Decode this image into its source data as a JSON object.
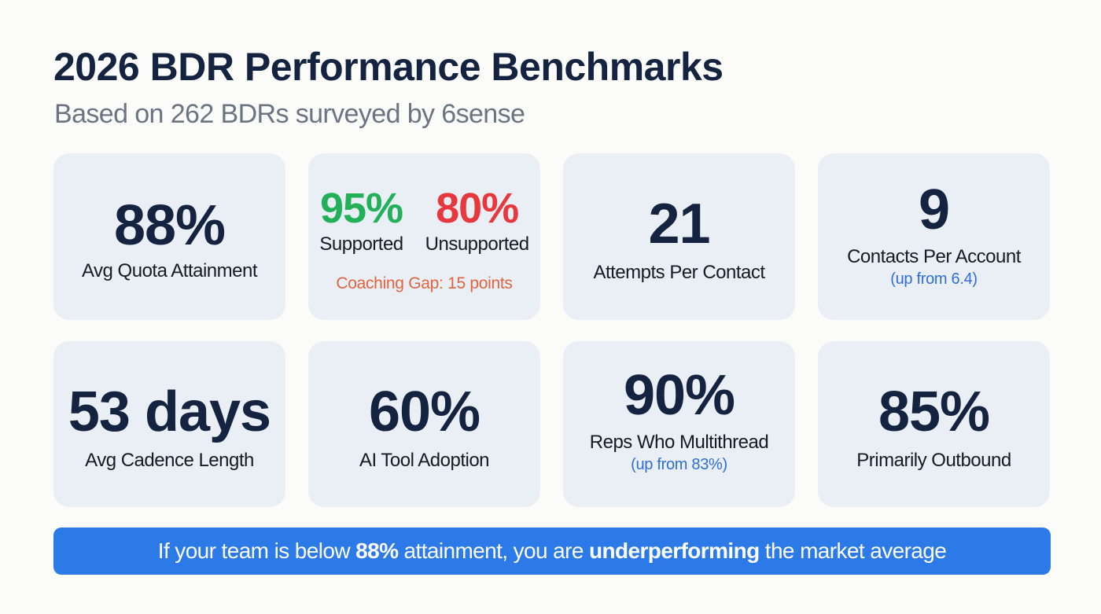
{
  "header": {
    "title": "2026 BDR Performance Benchmarks",
    "subtitle": "Based on 262 BDRs surveyed by 6sense"
  },
  "colors": {
    "navy": "#14233f",
    "card_bg": "#eaeef5",
    "green": "#22b159",
    "red": "#e6383d",
    "orange": "#e2643f",
    "blue_sub": "#2f6fd4",
    "banner_bg": "#2b7ae8"
  },
  "cards": {
    "quota": {
      "value": "88%",
      "label": "Avg Quota Attainment"
    },
    "coaching": {
      "supported_value": "95%",
      "supported_label": "Supported",
      "unsupported_value": "80%",
      "unsupported_label": "Unsupported",
      "note": "Coaching Gap: 15 points"
    },
    "attempts": {
      "value": "21",
      "label": "Attempts Per Contact"
    },
    "contacts": {
      "value": "9",
      "label": "Contacts Per Account",
      "sub": "(up from 6.4)"
    },
    "cadence": {
      "value": "53 days",
      "label": "Avg Cadence Length"
    },
    "ai": {
      "value": "60%",
      "label": "AI Tool Adoption"
    },
    "multithread": {
      "value": "90%",
      "label": "Reps Who Multithread",
      "sub": "(up from 83%)"
    },
    "outbound": {
      "value": "85%",
      "label": "Primarily Outbound"
    }
  },
  "banner": {
    "part1": "If your team is below ",
    "bold1": "88%",
    "part2": " attainment, you are ",
    "bold2": "underperforming",
    "part3": " the market average"
  }
}
